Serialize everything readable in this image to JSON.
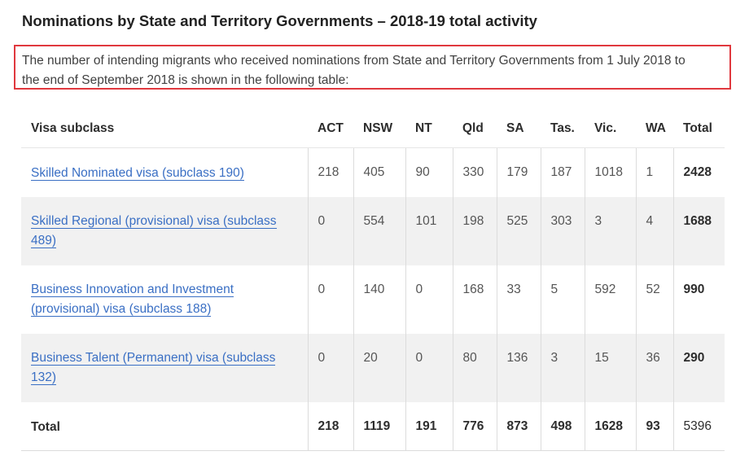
{
  "title": "Nominations by State and Territory Governments – 2018-19 total activity",
  "intro": {
    "line1": "The number of intending migrants who received nominations from State and Territory Governments from 1 July 2018 to",
    "line2": "the end of September 2018 is shown in the following table:"
  },
  "table": {
    "headers": [
      "Visa subclass",
      "ACT",
      "NSW",
      "NT",
      "Qld",
      "SA",
      "Tas.",
      "Vic.",
      "WA",
      "Total"
    ],
    "rows": [
      {
        "visa": "Skilled Nominated visa (subclass 190)",
        "values": [
          "218",
          "405",
          "90",
          "330",
          "179",
          "187",
          "1018",
          "1",
          "2428"
        ]
      },
      {
        "visa": "Skilled Regional (provisional) visa (subclass 489)",
        "values": [
          "0",
          "554",
          "101",
          "198",
          "525",
          "303",
          "3",
          "4",
          "1688"
        ]
      },
      {
        "visa": "Business Innovation and Investment (provisional) visa (subclass 188)",
        "values": [
          "0",
          "140",
          "0",
          "168",
          "33",
          "5",
          "592",
          "52",
          "990"
        ]
      },
      {
        "visa": "Business Talent (Permanent) visa (subclass 132)",
        "values": [
          "0",
          "20",
          "0",
          "80",
          "136",
          "3",
          "15",
          "36",
          "290"
        ]
      }
    ],
    "total_row": {
      "label": "Total",
      "values": [
        "218",
        "1119",
        "191",
        "776",
        "873",
        "498",
        "1628",
        "93",
        "5396"
      ]
    }
  },
  "colors": {
    "highlight_border": "#e0383e",
    "link": "#3a6fc4",
    "row_shade": "#f1f1f1"
  }
}
